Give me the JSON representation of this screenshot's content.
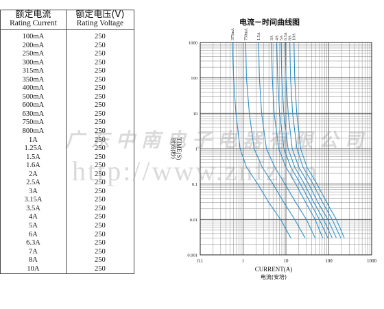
{
  "table": {
    "header": {
      "col1_cn": "额定电流",
      "col1_en": "Rating Current",
      "col2_cn": "额定电压(V)",
      "col2_en": "Rating Voltage"
    },
    "rows": [
      [
        "100mA",
        "250"
      ],
      [
        "200mA",
        "250"
      ],
      [
        "250mA",
        "250"
      ],
      [
        "300mA",
        "250"
      ],
      [
        "315mA",
        "250"
      ],
      [
        "350mA",
        "250"
      ],
      [
        "400mA",
        "250"
      ],
      [
        "500mA",
        "250"
      ],
      [
        "600mA",
        "250"
      ],
      [
        "630mA",
        "250"
      ],
      [
        "750mA",
        "250"
      ],
      [
        "800mA",
        "250"
      ],
      [
        "1A",
        "250"
      ],
      [
        "1.25A",
        "250"
      ],
      [
        "1.5A",
        "250"
      ],
      [
        "1.6A",
        "250"
      ],
      [
        "2A",
        "250"
      ],
      [
        "2.5A",
        "250"
      ],
      [
        "3A",
        "250"
      ],
      [
        "3.15A",
        "250"
      ],
      [
        "3.5A",
        "250"
      ],
      [
        "4A",
        "250"
      ],
      [
        "5A",
        "250"
      ],
      [
        "6A",
        "250"
      ],
      [
        "6.3A",
        "250"
      ],
      [
        "7A",
        "250"
      ],
      [
        "8A",
        "250"
      ],
      [
        "10A",
        "250"
      ]
    ]
  },
  "watermark": {
    "company": "广东中南电子电器有限公司",
    "url": "http://www.znfz.cn"
  },
  "chart_data": {
    "type": "line",
    "title": "电流－时间曲线图",
    "xlabel": "CURRENT(A)",
    "xlabel_cn": "电流(安培)",
    "ylabel": "TIME(S)",
    "ylabel_cn": "时间(秒)",
    "x_scale": "log",
    "y_scale": "log",
    "xlim": [
      0.1,
      1000
    ],
    "ylim": [
      0.001,
      1000
    ],
    "x_ticks": [
      "0.1",
      "1",
      "10",
      "100",
      "1000"
    ],
    "y_ticks": [
      "1000",
      "100",
      "10",
      "1",
      "0.1",
      "0.01",
      "0.001"
    ],
    "grid": true,
    "line_color": "#2e8fc8",
    "series": [
      {
        "name": "375mA",
        "x": [
          0.56,
          0.6,
          0.68,
          0.85,
          1.2,
          2.2,
          4.0,
          7.5,
          13
        ],
        "y": [
          1000,
          100,
          10,
          1,
          0.3,
          0.1,
          0.03,
          0.01,
          0.003
        ]
      },
      {
        "name": "750mA",
        "x": [
          1.15,
          1.2,
          1.4,
          1.8,
          2.8,
          5.0,
          9.0,
          16,
          28
        ],
        "y": [
          1000,
          100,
          10,
          1,
          0.3,
          0.1,
          0.03,
          0.01,
          0.003
        ]
      },
      {
        "name": "1.5A",
        "x": [
          2.3,
          2.4,
          2.7,
          3.5,
          5.5,
          9.5,
          17,
          30,
          48
        ],
        "y": [
          1000,
          100,
          10,
          1,
          0.3,
          0.1,
          0.03,
          0.01,
          0.003
        ]
      },
      {
        "name": "3A",
        "x": [
          4.6,
          4.8,
          5.3,
          6.8,
          10,
          17,
          29,
          48,
          72
        ],
        "y": [
          1000,
          100,
          10,
          1,
          0.3,
          0.1,
          0.03,
          0.01,
          0.003
        ]
      },
      {
        "name": "4A",
        "x": [
          6.1,
          6.4,
          7.1,
          9,
          13,
          22,
          37,
          60,
          95
        ],
        "y": [
          1000,
          100,
          10,
          1,
          0.3,
          0.1,
          0.03,
          0.01,
          0.003
        ]
      },
      {
        "name": "5A",
        "x": [
          7.7,
          8.0,
          8.9,
          11.2,
          16,
          27,
          45,
          75,
          120
        ],
        "y": [
          1000,
          100,
          10,
          1,
          0.3,
          0.1,
          0.03,
          0.01,
          0.003
        ]
      },
      {
        "name": "6.3A",
        "x": [
          9.6,
          10,
          11.3,
          14,
          20,
          34,
          56,
          95,
          150
        ],
        "y": [
          1000,
          100,
          10,
          1,
          0.3,
          0.1,
          0.03,
          0.01,
          0.003
        ]
      },
      {
        "name": "8A",
        "x": [
          12.3,
          12.8,
          14.3,
          18,
          25,
          43,
          72,
          120,
          190
        ],
        "y": [
          1000,
          100,
          10,
          1,
          0.3,
          0.1,
          0.03,
          0.01,
          0.003
        ]
      },
      {
        "name": "10A",
        "x": [
          15.4,
          16,
          17.8,
          22,
          31,
          53,
          90,
          150,
          230
        ],
        "y": [
          1000,
          100,
          10,
          1,
          0.3,
          0.1,
          0.03,
          0.01,
          0.003
        ]
      }
    ]
  }
}
